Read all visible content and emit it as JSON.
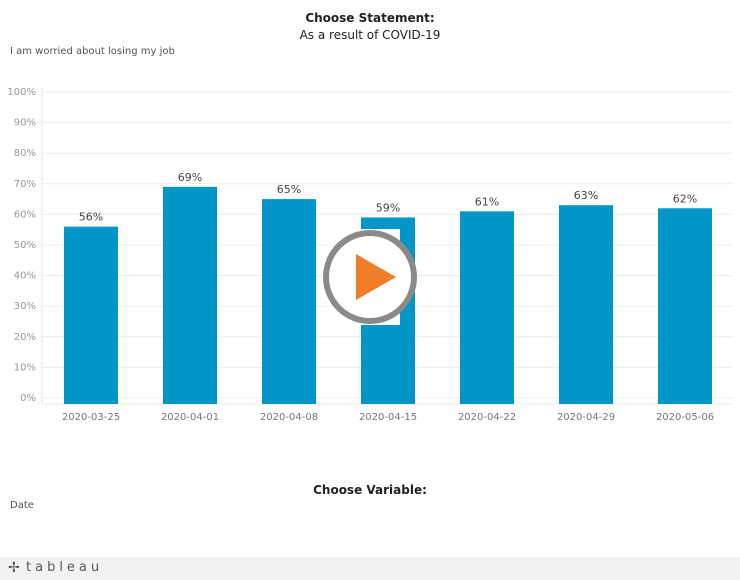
{
  "header": {
    "title": "Choose Statement:",
    "subtitle": "As a result of COVID-19"
  },
  "statement": "I am worried about losing my job",
  "chart_data": {
    "type": "bar",
    "categories": [
      "2020-03-25",
      "2020-04-01",
      "2020-04-08",
      "2020-04-15",
      "2020-04-22",
      "2020-04-29",
      "2020-05-06"
    ],
    "values": [
      56,
      69,
      65,
      59,
      61,
      63,
      62
    ],
    "value_labels": [
      "56%",
      "69%",
      "65%",
      "59%",
      "61%",
      "63%",
      "62%"
    ],
    "y_ticks": [
      "0%",
      "10%",
      "20%",
      "30%",
      "40%",
      "50%",
      "60%",
      "70%",
      "80%",
      "90%",
      "100%"
    ],
    "ylim": [
      0,
      100
    ],
    "grid": true,
    "bar_color": "#0096c8"
  },
  "play_button": {
    "ring_color": "#8a8a8a",
    "triangle_color": "#f07d28"
  },
  "variable_section": {
    "title": "Choose Variable:",
    "value": "Date"
  },
  "footer": {
    "logo_mark": "✢",
    "logo_text": "tableau"
  }
}
